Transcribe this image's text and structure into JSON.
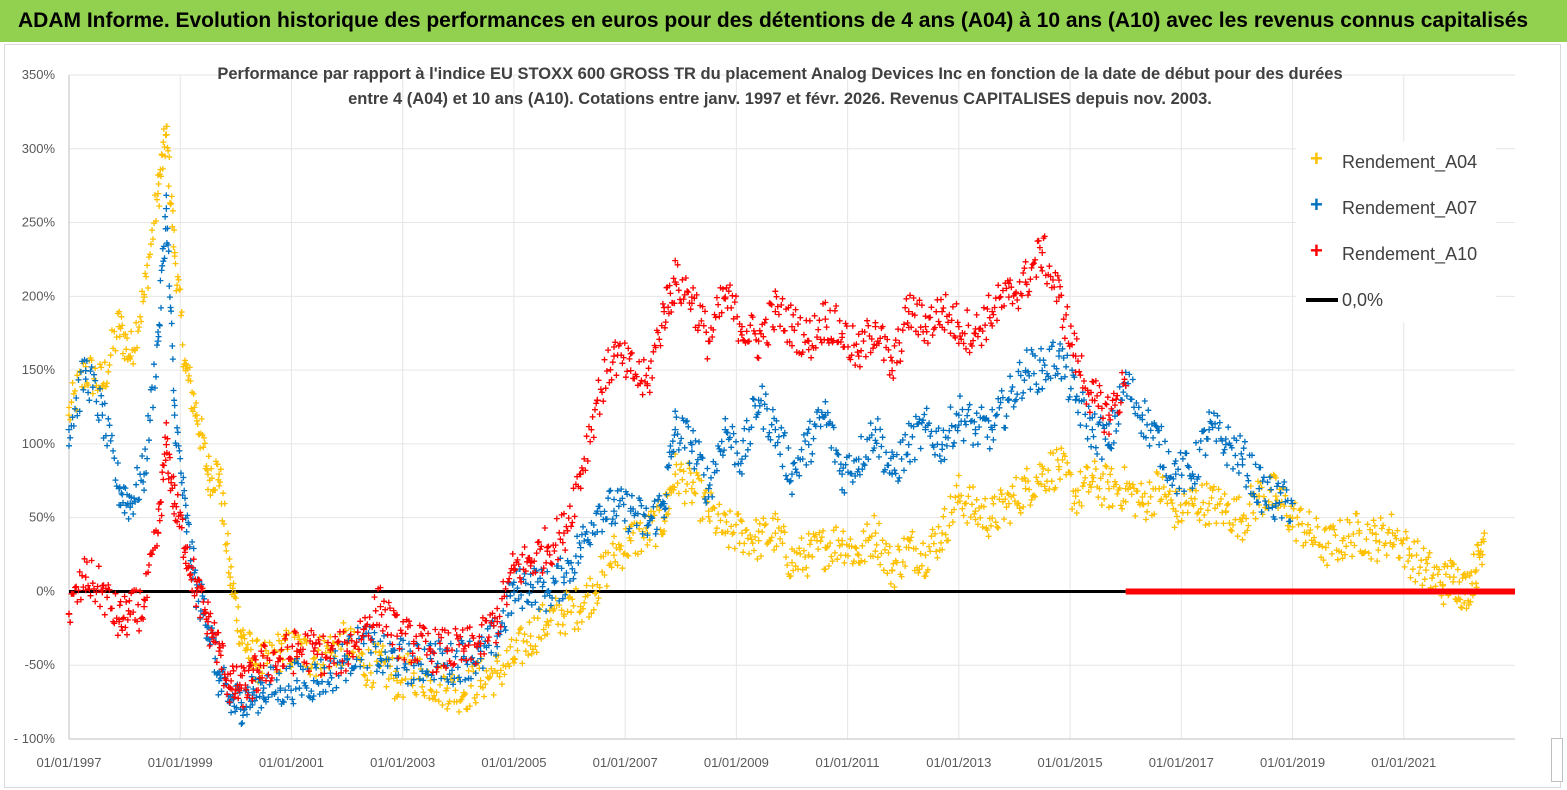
{
  "banner": {
    "title": "ADAM Informe. Evolution historique des performances en euros pour des détentions de 4 ans (A04) à 10 ans (A10) avec les revenus connus capitalisés",
    "color": "#92d050"
  },
  "chart_data": {
    "type": "scatter",
    "title_line1": "Performance par rapport à l'indice EU STOXX 600 GROSS TR  du placement Analog Devices Inc en fonction de la date de début pour des durées",
    "title_line2": "entre 4 (A04) et 10 ans (A10). Cotations entre janv. 1997 et févr. 2026. Revenus CAPITALISES depuis nov. 2003.",
    "ylim": [
      -100,
      350
    ],
    "yticks": [
      -100,
      -50,
      0,
      50,
      100,
      150,
      200,
      250,
      300,
      350
    ],
    "ytick_labels": [
      "- 100%",
      "-50%",
      "0%",
      "50%",
      "100%",
      "150%",
      "200%",
      "250%",
      "300%",
      "350%"
    ],
    "xlim": [
      1997.0,
      2023.0
    ],
    "xticks": [
      1997,
      1999,
      2001,
      2003,
      2005,
      2007,
      2009,
      2011,
      2013,
      2015,
      2017,
      2019,
      2021
    ],
    "xtick_labels": [
      "01/01/1997",
      "01/01/1999",
      "01/01/2001",
      "01/01/2003",
      "01/01/2005",
      "01/01/2007",
      "01/01/2009",
      "01/01/2011",
      "01/01/2013",
      "01/01/2015",
      "01/01/2017",
      "01/01/2019",
      "01/01/2021"
    ],
    "legend_position": "top-right",
    "series": [
      {
        "name": "Rendement_A04",
        "color": "#ffc000",
        "marker": "+",
        "x": [
          1997.0,
          1997.3,
          1997.6,
          1997.9,
          1998.1,
          1998.35,
          1998.6,
          1998.75,
          1998.9,
          1999.1,
          1999.3,
          1999.5,
          1999.7,
          1999.9,
          2000.1,
          2000.3,
          2000.5,
          2000.8,
          2001.1,
          2001.4,
          2001.7,
          2002.0,
          2002.3,
          2002.6,
          2002.9,
          2003.2,
          2003.5,
          2003.8,
          2004.1,
          2004.4,
          2004.7,
          2005.0,
          2005.3,
          2005.6,
          2005.9,
          2006.2,
          2006.5,
          2006.8,
          2007.1,
          2007.4,
          2007.7,
          2007.9,
          2008.2,
          2008.5,
          2008.8,
          2009.1,
          2009.4,
          2009.7,
          2010.0,
          2010.3,
          2010.6,
          2010.9,
          2011.2,
          2011.5,
          2011.8,
          2012.1,
          2012.4,
          2012.7,
          2013.0,
          2013.3,
          2013.6,
          2013.9,
          2014.2,
          2014.5,
          2014.8,
          2015.1,
          2015.4,
          2015.7,
          2016.0,
          2016.3,
          2016.6,
          2016.9,
          2017.2,
          2017.5,
          2017.8,
          2018.1,
          2018.4,
          2018.7,
          2019.0,
          2019.3,
          2019.6,
          2019.9,
          2020.2,
          2020.5,
          2020.8,
          2021.1,
          2021.4,
          2021.7,
          2021.9,
          2022.1,
          2022.3,
          2022.45
        ],
        "y": [
          120,
          150,
          140,
          180,
          160,
          200,
          270,
          310,
          230,
          150,
          120,
          80,
          80,
          10,
          -30,
          -45,
          -50,
          -40,
          -40,
          -45,
          -40,
          -35,
          -50,
          -50,
          -60,
          -55,
          -60,
          -65,
          -68,
          -60,
          -55,
          -45,
          -30,
          -20,
          -15,
          -10,
          5,
          25,
          35,
          40,
          50,
          80,
          70,
          55,
          40,
          40,
          35,
          40,
          20,
          25,
          30,
          35,
          25,
          40,
          15,
          30,
          25,
          40,
          65,
          55,
          50,
          60,
          70,
          80,
          85,
          65,
          75,
          70,
          70,
          60,
          70,
          55,
          60,
          60,
          55,
          50,
          65,
          65,
          50,
          40,
          30,
          35,
          40,
          35,
          40,
          25,
          15,
          5,
          10,
          0,
          15,
          40
        ]
      },
      {
        "name": "Rendement_A07",
        "color": "#0070c0",
        "marker": "+",
        "x": [
          1997.0,
          1997.3,
          1997.6,
          1997.9,
          1998.1,
          1998.35,
          1998.6,
          1998.75,
          1998.9,
          1999.1,
          1999.3,
          1999.5,
          1999.7,
          1999.9,
          2000.1,
          2000.3,
          2000.5,
          2000.8,
          2001.1,
          2001.4,
          2001.7,
          2002.0,
          2002.3,
          2002.6,
          2002.9,
          2003.2,
          2003.5,
          2003.8,
          2004.1,
          2004.4,
          2004.7,
          2005.0,
          2005.3,
          2005.6,
          2005.9,
          2006.2,
          2006.5,
          2006.8,
          2007.1,
          2007.4,
          2007.7,
          2007.9,
          2008.2,
          2008.5,
          2008.8,
          2009.1,
          2009.4,
          2009.7,
          2010.0,
          2010.3,
          2010.6,
          2010.9,
          2011.2,
          2011.5,
          2011.8,
          2012.1,
          2012.4,
          2012.7,
          2013.0,
          2013.3,
          2013.6,
          2013.9,
          2014.2,
          2014.5,
          2014.8,
          2015.1,
          2015.4,
          2015.7,
          2016.0,
          2016.3,
          2016.6,
          2016.9,
          2017.2,
          2017.5,
          2017.8,
          2018.1,
          2018.4,
          2018.7,
          2019.0
        ],
        "y": [
          110,
          150,
          120,
          70,
          60,
          80,
          170,
          260,
          120,
          50,
          0,
          -20,
          -60,
          -75,
          -75,
          -70,
          -65,
          -65,
          -60,
          -60,
          -55,
          -45,
          -35,
          -45,
          -45,
          -50,
          -45,
          -50,
          -45,
          -45,
          -30,
          0,
          5,
          0,
          10,
          30,
          55,
          55,
          55,
          45,
          60,
          110,
          100,
          70,
          110,
          90,
          130,
          110,
          80,
          100,
          120,
          80,
          90,
          110,
          80,
          100,
          110,
          100,
          120,
          110,
          110,
          130,
          150,
          150,
          160,
          130,
          110,
          100,
          140,
          120,
          100,
          80,
          80,
          110,
          100,
          90,
          70,
          60,
          60
        ]
      },
      {
        "name": "Rendement_A10",
        "color": "#ff0000",
        "marker": "+",
        "x": [
          1997.0,
          1997.3,
          1997.6,
          1997.9,
          1998.1,
          1998.35,
          1998.6,
          1998.75,
          1998.9,
          1999.1,
          1999.3,
          1999.5,
          1999.7,
          1999.9,
          2000.1,
          2000.3,
          2000.5,
          2000.8,
          2001.1,
          2001.4,
          2001.7,
          2002.0,
          2002.3,
          2002.6,
          2002.9,
          2003.2,
          2003.5,
          2003.8,
          2004.1,
          2004.4,
          2004.7,
          2005.0,
          2005.3,
          2005.6,
          2005.9,
          2006.2,
          2006.5,
          2006.8,
          2007.1,
          2007.4,
          2007.7,
          2007.9,
          2008.2,
          2008.5,
          2008.8,
          2009.1,
          2009.4,
          2009.7,
          2010.0,
          2010.3,
          2010.6,
          2010.9,
          2011.2,
          2011.5,
          2011.8,
          2012.1,
          2012.4,
          2012.7,
          2013.0,
          2013.3,
          2013.6,
          2013.9,
          2014.2,
          2014.5,
          2014.8,
          2015.1,
          2015.4,
          2015.7,
          2016.0
        ],
        "y": [
          -15,
          10,
          0,
          -20,
          -15,
          -10,
          40,
          100,
          60,
          30,
          0,
          -20,
          -40,
          -65,
          -65,
          -60,
          -50,
          -45,
          -40,
          -40,
          -45,
          -40,
          -25,
          -10,
          -30,
          -35,
          -40,
          -40,
          -40,
          -35,
          -20,
          15,
          20,
          30,
          40,
          80,
          130,
          160,
          150,
          140,
          190,
          210,
          200,
          170,
          200,
          180,
          170,
          190,
          180,
          170,
          185,
          175,
          160,
          180,
          150,
          190,
          180,
          190,
          180,
          175,
          190,
          200,
          210,
          230,
          200,
          160,
          130,
          120,
          140
        ]
      }
    ],
    "zero_line": {
      "name": "0,0%",
      "color": "#000000",
      "y": 0
    },
    "flat_segment": {
      "x_start": 2016.0,
      "x_end": 2023.0,
      "y": 0,
      "color": "#ff0000"
    }
  },
  "legend": {
    "items": [
      {
        "label": "Rendement_A04",
        "color": "#ffc000",
        "mark": "+"
      },
      {
        "label": "Rendement_A07",
        "color": "#0070c0",
        "mark": "+"
      },
      {
        "label": "Rendement_A10",
        "color": "#ff0000",
        "mark": "+"
      },
      {
        "label": "0,0%",
        "color": "#000000",
        "mark": "line"
      }
    ]
  }
}
